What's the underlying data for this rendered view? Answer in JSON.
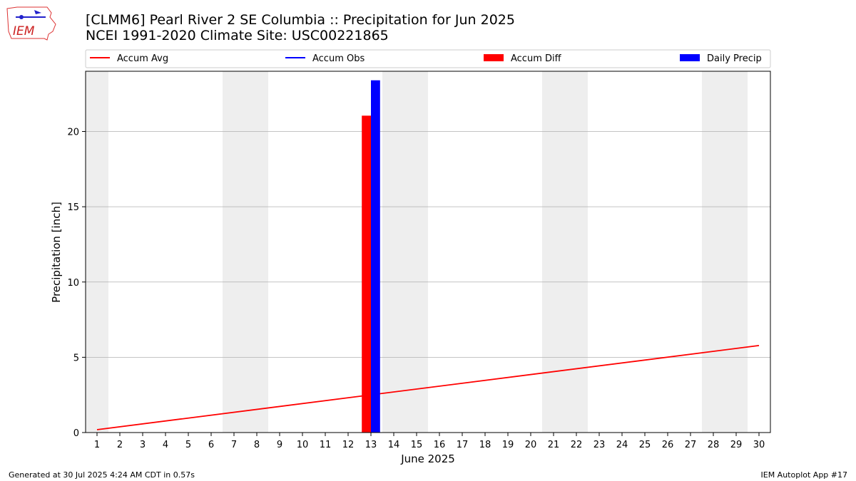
{
  "header": {
    "logo_text": "IEM",
    "title_line1": "[CLMM6] Pearl River 2 SE Columbia :: Precipitation for Jun 2025",
    "title_line2": "NCEI 1991-2020 Climate Site: USC00221865"
  },
  "footer": {
    "generated": "Generated at 30 Jul 2025 4:24 AM CDT in 0.57s",
    "app": "IEM Autoplot App #17"
  },
  "chart_data": {
    "type": "bar",
    "xlabel": "June 2025",
    "ylabel": "Precipitation [inch]",
    "xlim": [
      0.5,
      30.5
    ],
    "ylim": [
      0,
      24
    ],
    "yticks": [
      0,
      5,
      10,
      15,
      20
    ],
    "xticks": [
      1,
      2,
      3,
      4,
      5,
      6,
      7,
      8,
      9,
      10,
      11,
      12,
      13,
      14,
      15,
      16,
      17,
      18,
      19,
      20,
      21,
      22,
      23,
      24,
      25,
      26,
      27,
      28,
      29,
      30
    ],
    "grid": "horizontal",
    "legend_placement": "top",
    "weekend_shading": [
      [
        0.5,
        1.5
      ],
      [
        6.5,
        8.5
      ],
      [
        13.5,
        15.5
      ],
      [
        20.5,
        22.5
      ],
      [
        27.5,
        29.5
      ]
    ],
    "legend": [
      {
        "label": "Accum Avg",
        "kind": "line",
        "color": "#ff0000"
      },
      {
        "label": "Accum Obs",
        "kind": "line",
        "color": "#0000ff"
      },
      {
        "label": "Accum Diff",
        "kind": "bar",
        "color": "#ff0000"
      },
      {
        "label": "Daily Precip",
        "kind": "bar",
        "color": "#0000ff"
      }
    ],
    "series": [
      {
        "name": "Accum Avg",
        "type": "line",
        "color": "#ff0000",
        "x": [
          1,
          30
        ],
        "y": [
          0.19,
          5.78
        ]
      },
      {
        "name": "Accum Diff",
        "type": "bar",
        "color": "#ff0000",
        "x": [
          13
        ],
        "y": [
          21.05
        ]
      },
      {
        "name": "Daily Precip",
        "type": "bar",
        "color": "#0000ff",
        "x": [
          13
        ],
        "y": [
          23.4
        ]
      }
    ]
  }
}
